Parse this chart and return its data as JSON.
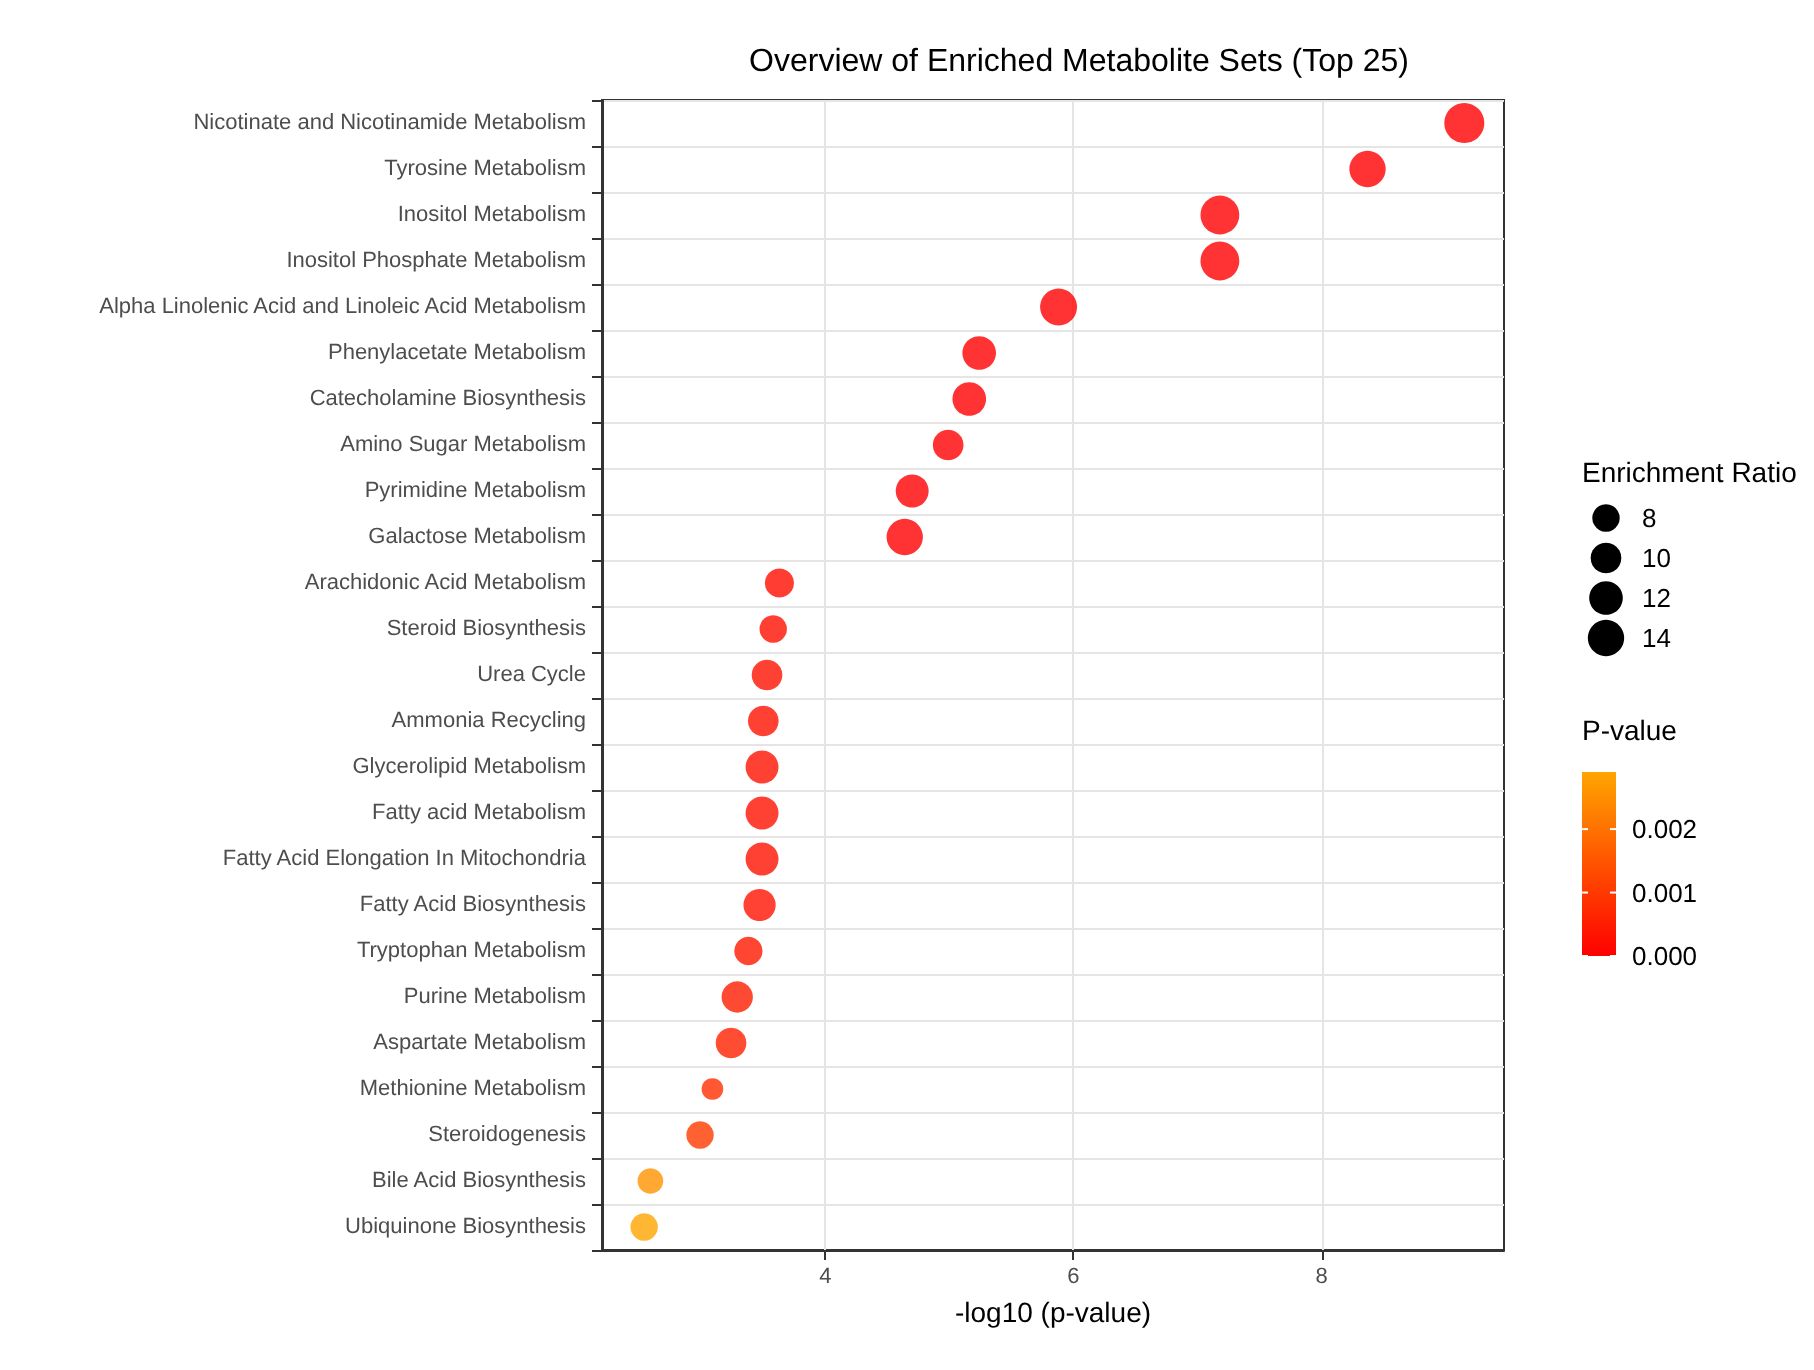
{
  "chart_data": {
    "type": "bubble",
    "title": "Overview of Enriched Metabolite Sets (Top 25)",
    "xlabel": "-log10 (p-value)",
    "legend_title": "Enrichment Ratio",
    "clabel": "P-value",
    "categories": [
      "Nicotinate and Nicotinamide Metabolism",
      "Tyrosine Metabolism",
      "Inositol Metabolism",
      "Inositol Phosphate Metabolism",
      "Alpha Linolenic Acid and Linoleic Acid Metabolism",
      "Phenylacetate Metabolism",
      "Catecholamine Biosynthesis",
      "Amino Sugar Metabolism",
      "Pyrimidine Metabolism",
      "Galactose Metabolism",
      "Arachidonic Acid Metabolism",
      "Steroid Biosynthesis",
      "Urea Cycle",
      "Ammonia Recycling",
      "Glycerolipid Metabolism",
      "Fatty acid Metabolism",
      "Fatty Acid Elongation In Mitochondria",
      "Fatty Acid Biosynthesis",
      "Tryptophan Metabolism",
      "Purine Metabolism",
      "Aspartate Metabolism",
      "Methionine Metabolism",
      "Steroidogenesis",
      "Bile Acid Biosynthesis",
      "Ubiquinone Biosynthesis"
    ],
    "orientation": "horizontal",
    "values": [
      9.15,
      8.37,
      7.18,
      7.18,
      5.88,
      5.24,
      5.16,
      4.99,
      4.7,
      4.64,
      3.63,
      3.58,
      3.53,
      3.5,
      3.49,
      3.49,
      3.49,
      3.47,
      3.38,
      3.29,
      3.24,
      3.09,
      2.99,
      2.59,
      2.54
    ],
    "sizes": [
      17,
      14,
      16,
      16,
      14.5,
      12,
      12,
      10,
      11.5,
      14,
      9,
      8,
      10,
      10,
      11.5,
      11.5,
      11.5,
      11,
      8.5,
      10.5,
      10,
      5,
      8,
      7,
      8
    ],
    "size_legend": [
      8,
      10,
      12,
      14
    ],
    "cvalues": [
      0,
      0,
      0,
      0,
      0,
      0,
      0,
      0,
      0,
      0,
      0.00023,
      0.00026,
      0.0003,
      0.00032,
      0.00032,
      0.00032,
      0.00032,
      0.00034,
      0.00042,
      0.00051,
      0.00058,
      0.00081,
      0.001,
      0.0026,
      0.0029
    ],
    "clim": [
      0,
      0.0029
    ],
    "cticks": [
      {
        "value": 0,
        "label": "0.000"
      },
      {
        "value": 0.001,
        "label": "0.001"
      },
      {
        "value": 0.002,
        "label": "0.002"
      }
    ],
    "xlim": [
      2.2,
      9.47
    ],
    "xticks": [
      4,
      6,
      8
    ],
    "grid": true
  }
}
